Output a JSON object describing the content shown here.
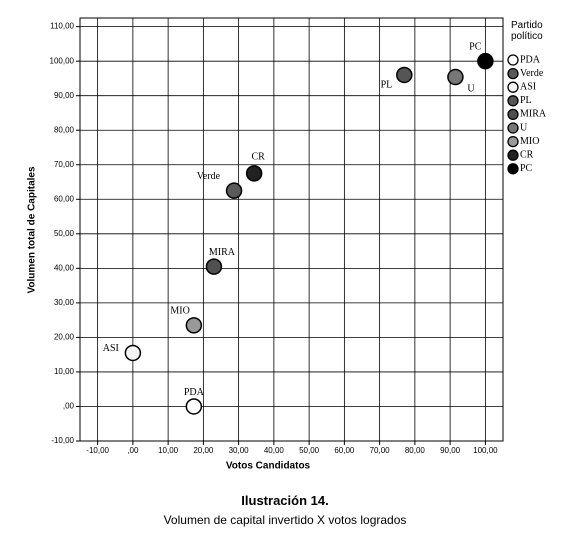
{
  "chart_data": {
    "type": "scatter",
    "x_label": "Votos Candidatos",
    "y_label": "Volumen total de Capitales",
    "legend_title": "Partido político",
    "legend_position": "right",
    "grid": true,
    "xlim": [
      -15,
      105
    ],
    "ylim": [
      -10,
      112.5
    ],
    "xticks": [
      {
        "value": -10,
        "label": "-10,00"
      },
      {
        "value": 0,
        "label": ",00"
      },
      {
        "value": 10,
        "label": "10,00"
      },
      {
        "value": 20,
        "label": "20,00"
      },
      {
        "value": 30,
        "label": "30,00"
      },
      {
        "value": 40,
        "label": "40,00"
      },
      {
        "value": 50,
        "label": "50,00"
      },
      {
        "value": 60,
        "label": "60,00"
      },
      {
        "value": 70,
        "label": "70,00"
      },
      {
        "value": 80,
        "label": "80,00"
      },
      {
        "value": 90,
        "label": "90,00"
      },
      {
        "value": 100,
        "label": "100,00"
      }
    ],
    "yticks": [
      {
        "value": -10,
        "label": "-10,00"
      },
      {
        "value": 0,
        "label": ",00"
      },
      {
        "value": 10,
        "label": "10,00"
      },
      {
        "value": 20,
        "label": "20,00"
      },
      {
        "value": 30,
        "label": "30,00"
      },
      {
        "value": 40,
        "label": "40,00"
      },
      {
        "value": 50,
        "label": "50,00"
      },
      {
        "value": 60,
        "label": "60,00"
      },
      {
        "value": 70,
        "label": "70,00"
      },
      {
        "value": 80,
        "label": "80,00"
      },
      {
        "value": 90,
        "label": "90,00"
      },
      {
        "value": 100,
        "label": "100,00"
      },
      {
        "value": 110,
        "label": "110,00"
      }
    ],
    "series": [
      {
        "name": "PDA",
        "color": "#ffffff",
        "x": [
          17.3
        ],
        "values": [
          0
        ]
      },
      {
        "name": "Verde",
        "color": "#5a5a5a",
        "x": [
          28.7
        ],
        "values": [
          62.5
        ]
      },
      {
        "name": "ASI",
        "color": "#f4f4f4",
        "x": [
          0
        ],
        "values": [
          15.5
        ]
      },
      {
        "name": "PL",
        "color": "#555555",
        "x": [
          77
        ],
        "values": [
          96
        ]
      },
      {
        "name": "MIRA",
        "color": "#505050",
        "x": [
          23
        ],
        "values": [
          40.5
        ]
      },
      {
        "name": "U",
        "color": "#777777",
        "x": [
          91.5
        ],
        "values": [
          95.4
        ]
      },
      {
        "name": "MIO",
        "color": "#999999",
        "x": [
          17.3
        ],
        "values": [
          23.5
        ]
      },
      {
        "name": "CR",
        "color": "#222222",
        "x": [
          34.4
        ],
        "values": [
          67.5
        ]
      },
      {
        "name": "PC",
        "color": "#000000",
        "x": [
          100
        ],
        "values": [
          100
        ]
      }
    ]
  },
  "caption": {
    "title": "Ilustración 14.",
    "text": "Volumen de capital invertido X votos logrados"
  }
}
